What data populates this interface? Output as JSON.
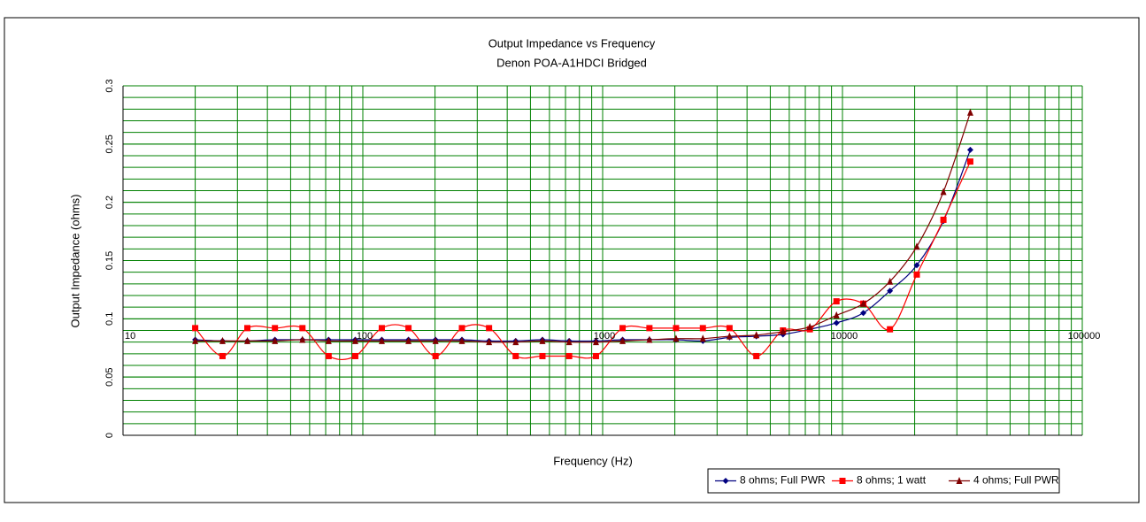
{
  "chart_data": {
    "type": "line",
    "title": "Output Impedance  vs Frequency",
    "subtitle": "Denon POA-A1HDCI Bridged",
    "x_label": "Frequency (Hz)",
    "y_label": "Output Impedance (ohms)",
    "x_log": true,
    "xlim": [
      10,
      100000
    ],
    "xticks": [
      10,
      100,
      1000,
      10000,
      100000
    ],
    "ylim": [
      0,
      0.3
    ],
    "yticks": [
      0,
      0.05,
      0.1,
      0.15,
      0.2,
      0.25,
      0.3
    ],
    "y_minor_step": 0.01,
    "grid": true,
    "grid_color": "#008000",
    "legend": "bottom-right",
    "x": [
      20,
      26,
      33,
      43,
      56,
      72,
      93,
      120,
      155,
      201,
      259,
      336,
      434,
      561,
      725,
      938,
      1211,
      1567,
      2023,
      2618,
      3381,
      4375,
      5649,
      7311,
      9441,
      12218,
      15776,
      20417,
      26363,
      34119
    ],
    "series": [
      {
        "name": "8 ohms; Full PWR",
        "color": "#000080",
        "marker": "diamond",
        "values": [
          0.082,
          0.081,
          0.081,
          0.082,
          0.082,
          0.082,
          0.082,
          0.082,
          0.082,
          0.082,
          0.082,
          0.081,
          0.081,
          0.082,
          0.081,
          0.081,
          0.082,
          0.082,
          0.082,
          0.081,
          0.084,
          0.085,
          0.0866,
          0.091,
          0.0965,
          0.105,
          0.124,
          0.146,
          0.184,
          0.245
        ]
      },
      {
        "name": "8 ohms; 1 watt",
        "color": "#ff0000",
        "marker": "square",
        "values": [
          0.092,
          0.068,
          0.092,
          0.092,
          0.092,
          0.068,
          0.068,
          0.092,
          0.092,
          0.068,
          0.092,
          0.092,
          0.068,
          0.068,
          0.068,
          0.068,
          0.092,
          0.092,
          0.092,
          0.092,
          0.092,
          0.068,
          0.09,
          0.091,
          0.115,
          0.113,
          0.091,
          0.138,
          0.185,
          0.235
        ]
      },
      {
        "name": "4 ohms; Full PWR",
        "color": "#800000",
        "marker": "triangle",
        "values": [
          0.081,
          0.081,
          0.081,
          0.081,
          0.082,
          0.081,
          0.081,
          0.081,
          0.081,
          0.081,
          0.081,
          0.08,
          0.08,
          0.081,
          0.08,
          0.08,
          0.081,
          0.082,
          0.083,
          0.083,
          0.085,
          0.086,
          0.089,
          0.093,
          0.103,
          0.113,
          0.132,
          0.162,
          0.209,
          0.277
        ]
      }
    ]
  }
}
